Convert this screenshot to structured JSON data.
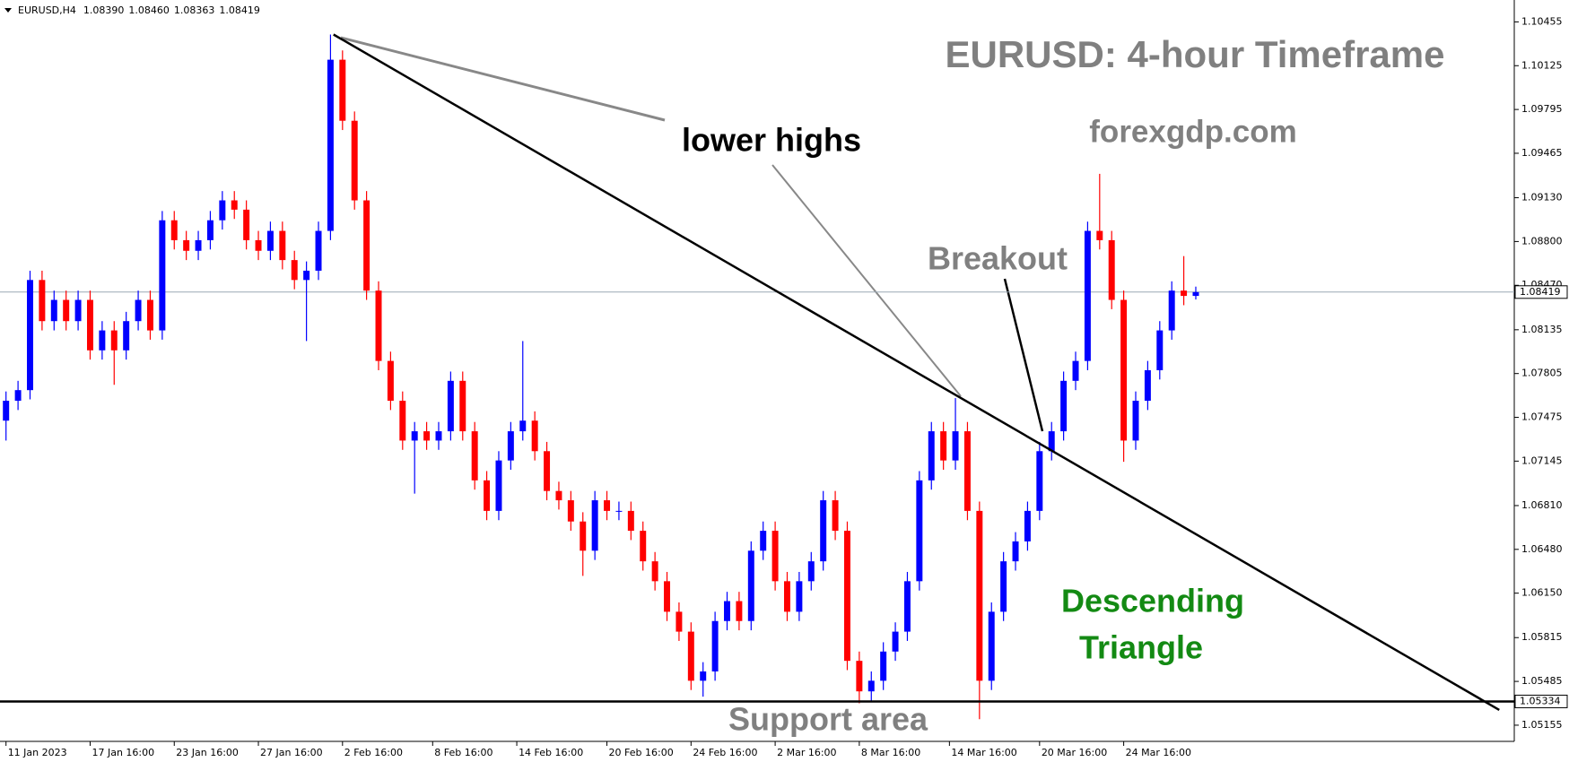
{
  "chart_data": {
    "type": "candlestick",
    "symbol": "EURUSD,H4",
    "ohlc_labels": [
      "1.08390",
      "1.08460",
      "1.08363",
      "1.08419"
    ],
    "title": "EURUSD: 4-hour Timeframe",
    "subtitle": "forexgdp.com",
    "annotations": [
      "lower highs",
      "Breakout",
      "Support area"
    ],
    "pattern_label": [
      "Descending",
      "Triangle"
    ],
    "up_color": "#0000ff",
    "down_color": "#ff0000",
    "ohlc": {
      "open": [
        1.0745,
        1.076,
        1.0768,
        1.0851,
        1.082,
        1.0836,
        1.082,
        1.0836,
        1.0798,
        1.0813,
        1.0798,
        1.082,
        1.0836,
        1.0813,
        1.0896,
        1.0881,
        1.0873,
        1.0881,
        1.0896,
        1.0911,
        1.0904,
        1.0881,
        1.0873,
        1.0888,
        1.0866,
        1.0851,
        1.0858,
        1.0888,
        1.1017,
        1.0971,
        1.0911,
        1.0843,
        1.079,
        1.076,
        1.073,
        1.0737,
        1.073,
        1.0737,
        1.0775,
        1.0737,
        1.07,
        1.0677,
        1.0715,
        1.0737,
        1.0745,
        1.0722,
        1.0692,
        1.0685,
        1.0669,
        1.0647,
        1.0685,
        1.0677,
        1.0677,
        1.0662,
        1.0639,
        1.0624,
        1.0601,
        1.0586,
        1.0549,
        1.0556,
        1.0594,
        1.0609,
        1.0594,
        1.0647,
        1.0662,
        1.0624,
        1.0601,
        1.0624,
        1.0639,
        1.0685,
        1.0662,
        1.0564,
        1.0541,
        1.0549,
        1.0571,
        1.0586,
        1.0624,
        1.07,
        1.0737,
        1.0715,
        1.0737,
        1.0677,
        1.0549,
        1.0601,
        1.0639,
        1.0654,
        1.0677,
        1.0722,
        1.0737,
        1.0775,
        1.079,
        1.0888,
        1.0881,
        1.0836,
        1.073,
        1.076,
        1.0783,
        1.0813,
        1.0843,
        1.0839
      ],
      "high": [
        1.0767,
        1.0775,
        1.0858,
        1.0858,
        1.0843,
        1.0843,
        1.0843,
        1.0843,
        1.082,
        1.082,
        1.0827,
        1.0843,
        1.0843,
        1.0903,
        1.0903,
        1.0888,
        1.0888,
        1.0903,
        1.0918,
        1.0918,
        1.0911,
        1.0888,
        1.0895,
        1.0895,
        1.0873,
        1.0865,
        1.0895,
        1.1036,
        1.1024,
        1.0978,
        1.0918,
        1.085,
        1.0797,
        1.0767,
        1.0744,
        1.0744,
        1.0744,
        1.0782,
        1.0782,
        1.0744,
        1.0707,
        1.0722,
        1.0744,
        1.0805,
        1.0752,
        1.0729,
        1.0699,
        1.0692,
        1.0676,
        1.0692,
        1.0692,
        1.0684,
        1.0684,
        1.0669,
        1.0646,
        1.0631,
        1.0608,
        1.0593,
        1.0563,
        1.0601,
        1.0616,
        1.0616,
        1.0654,
        1.0669,
        1.0669,
        1.0631,
        1.0631,
        1.0646,
        1.0692,
        1.0692,
        1.0669,
        1.0571,
        1.0556,
        1.0578,
        1.0593,
        1.0631,
        1.0707,
        1.0744,
        1.0744,
        1.0762,
        1.0744,
        1.0684,
        1.0608,
        1.0646,
        1.0661,
        1.0684,
        1.0729,
        1.0744,
        1.0782,
        1.0797,
        1.0895,
        1.0931,
        1.0888,
        1.0843,
        1.0767,
        1.079,
        1.082,
        1.085,
        1.0869,
        1.0846
      ],
      "low": [
        1.073,
        1.0753,
        1.0761,
        1.0813,
        1.0813,
        1.0813,
        1.0813,
        1.0791,
        1.0791,
        1.0772,
        1.0791,
        1.0813,
        1.0806,
        1.0806,
        1.0874,
        1.0866,
        1.0866,
        1.0874,
        1.0889,
        1.0897,
        1.0874,
        1.0866,
        1.0866,
        1.0859,
        1.0844,
        1.0805,
        1.0851,
        1.0881,
        1.0964,
        1.0904,
        1.0836,
        1.0783,
        1.0753,
        1.0723,
        1.069,
        1.0723,
        1.0723,
        1.073,
        1.073,
        1.0693,
        1.067,
        1.067,
        1.0708,
        1.073,
        1.0715,
        1.0685,
        1.0678,
        1.0662,
        1.0628,
        1.064,
        1.067,
        1.067,
        1.0655,
        1.0632,
        1.0617,
        1.0594,
        1.0579,
        1.0542,
        1.0537,
        1.0549,
        1.0587,
        1.0587,
        1.0587,
        1.064,
        1.0617,
        1.0594,
        1.0594,
        1.0617,
        1.0632,
        1.0655,
        1.0557,
        1.0532,
        1.0534,
        1.0542,
        1.0564,
        1.0579,
        1.0617,
        1.0693,
        1.0708,
        1.0708,
        1.067,
        1.052,
        1.0542,
        1.0594,
        1.0632,
        1.0647,
        1.067,
        1.0715,
        1.073,
        1.0768,
        1.0783,
        1.0874,
        1.0829,
        1.0714,
        1.0723,
        1.0753,
        1.0776,
        1.0806,
        1.0832,
        1.08363
      ],
      "close": [
        1.076,
        1.0768,
        1.0851,
        1.082,
        1.0836,
        1.082,
        1.0836,
        1.0798,
        1.0813,
        1.0798,
        1.082,
        1.0836,
        1.0813,
        1.0896,
        1.0881,
        1.0873,
        1.0881,
        1.0896,
        1.0911,
        1.0904,
        1.0881,
        1.0873,
        1.0888,
        1.0866,
        1.0851,
        1.0858,
        1.0888,
        1.1017,
        1.0971,
        1.0911,
        1.0843,
        1.079,
        1.076,
        1.073,
        1.0737,
        1.073,
        1.0737,
        1.0775,
        1.0737,
        1.07,
        1.0677,
        1.0715,
        1.0737,
        1.0745,
        1.0722,
        1.0692,
        1.0685,
        1.0669,
        1.0647,
        1.0685,
        1.0677,
        1.0677,
        1.0662,
        1.0639,
        1.0624,
        1.0601,
        1.0586,
        1.0549,
        1.0556,
        1.0594,
        1.0609,
        1.0594,
        1.0647,
        1.0662,
        1.0624,
        1.0601,
        1.0624,
        1.0639,
        1.0685,
        1.0662,
        1.0564,
        1.0541,
        1.0549,
        1.0571,
        1.0586,
        1.0624,
        1.07,
        1.0737,
        1.0715,
        1.0737,
        1.0677,
        1.0549,
        1.0601,
        1.0639,
        1.0654,
        1.0677,
        1.0722,
        1.0737,
        1.0775,
        1.079,
        1.0888,
        1.0881,
        1.0836,
        1.073,
        1.076,
        1.0783,
        1.0813,
        1.0843,
        1.0839,
        1.08419
      ]
    },
    "last_price": 1.08419,
    "support_level": 1.05334,
    "trendline": {
      "x": [
        27.25,
        124.25
      ],
      "y": [
        1.1036,
        1.0527
      ]
    },
    "xlim": [
      -0.5,
      125.5
    ],
    "xticks": [
      {
        "value": 0,
        "label": "11 Jan 2023"
      },
      {
        "value": 7,
        "label": "17 Jan 16:00"
      },
      {
        "value": 14,
        "label": "23 Jan 16:00"
      },
      {
        "value": 21,
        "label": "27 Jan 16:00"
      },
      {
        "value": 28,
        "label": "2 Feb 16:00"
      },
      {
        "value": 35.5,
        "label": "8 Feb 16:00"
      },
      {
        "value": 42.5,
        "label": "14 Feb 16:00"
      },
      {
        "value": 50,
        "label": "20 Feb 16:00"
      },
      {
        "value": 57,
        "label": "24 Feb 16:00"
      },
      {
        "value": 64,
        "label": "2 Mar 16:00"
      },
      {
        "value": 71,
        "label": "8 Mar 16:00"
      },
      {
        "value": 78.5,
        "label": "14 Mar 16:00"
      },
      {
        "value": 86,
        "label": "20 Mar 16:00"
      },
      {
        "value": 93,
        "label": "24 Mar 16:00"
      }
    ],
    "ylim": [
      1.05033,
      1.1062
    ],
    "yticks": [
      1.10455,
      1.10125,
      1.09795,
      1.09465,
      {
        "value": 1.0913,
        "label": "1.09130"
      },
      {
        "value": 1.088,
        "label": "1.08800"
      },
      {
        "value": 1.0847,
        "label": "1.08470"
      },
      1.08135,
      1.07805,
      1.07475,
      1.07145,
      {
        "value": 1.0681,
        "label": "1.06810"
      },
      {
        "value": 1.0648,
        "label": "1.06480"
      },
      {
        "value": 1.0615,
        "label": "1.06150"
      },
      1.05815,
      1.05485,
      1.05155
    ]
  }
}
